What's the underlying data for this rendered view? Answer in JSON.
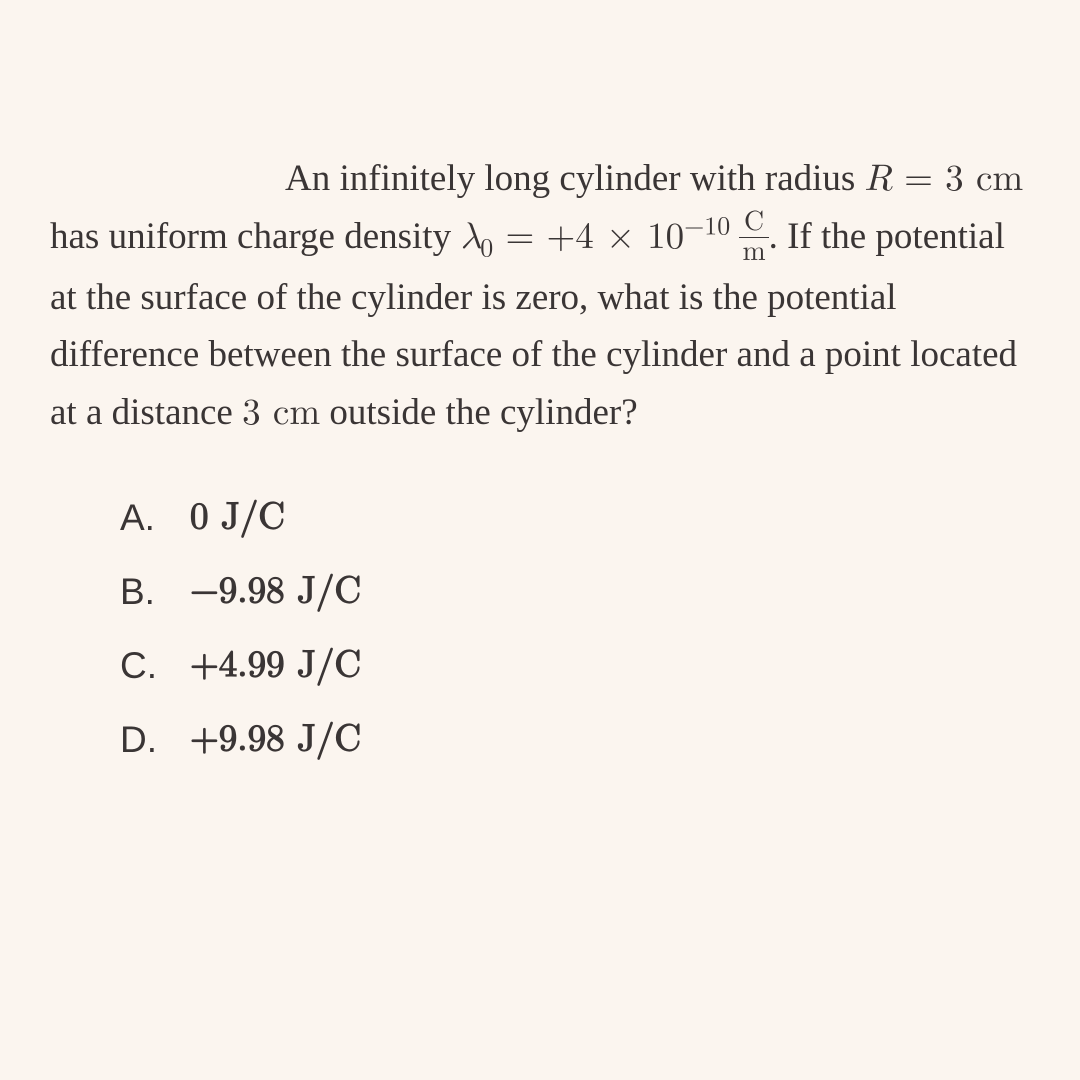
{
  "question": {
    "text1": "An infinitely long cylinder with radius",
    "text2": "has uniform charge density",
    "text3": ". If the potential at the surface of the cylinder is zero, what is the potential difference between the surface of the cylinder and a point located at a distance",
    "text4": "outside the cylinder?",
    "R_var": "R",
    "R_eq": " = 3 ",
    "R_unit": "cm",
    "lambda_var": "λ",
    "lambda_sub": "0",
    "lambda_eq": " = +4 × 10",
    "lambda_exp": "−10",
    "lambda_unit_num": "C",
    "lambda_unit_den": "m",
    "dist_val": "3 ",
    "dist_unit": "cm"
  },
  "choices": [
    {
      "label": "A.",
      "value": "0 J/C"
    },
    {
      "label": "B.",
      "value": "−9.98 J/C"
    },
    {
      "label": "C.",
      "value": "+4.99 J/C"
    },
    {
      "label": "D.",
      "value": "+9.98 J/C"
    }
  ],
  "style": {
    "background_color": "#fbf5ef",
    "text_color": "#3a3535",
    "question_fontsize": 37,
    "choice_fontsize": 37,
    "choices_indent": 70
  }
}
